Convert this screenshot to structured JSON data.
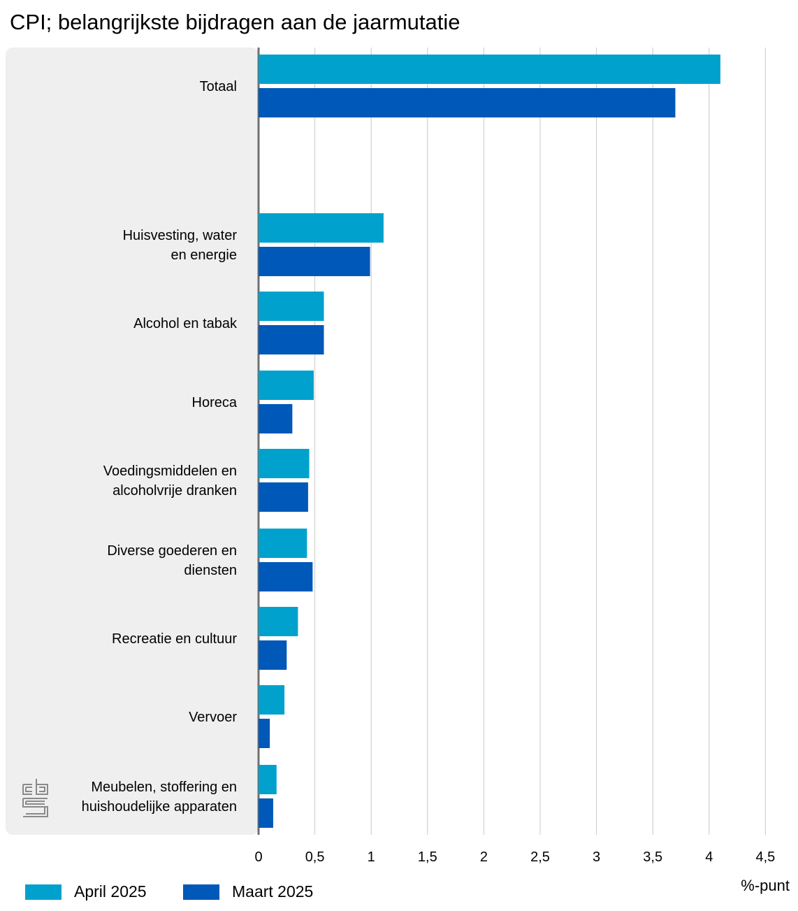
{
  "chart_data": {
    "type": "bar",
    "orientation": "horizontal",
    "title": "CPI; belangrijkste bijdragen aan de jaarmutatie",
    "unit_label": "%-punt",
    "xlim": [
      0,
      4.5
    ],
    "xticks": [
      0,
      0.5,
      1,
      1.5,
      2,
      2.5,
      3,
      3.5,
      4,
      4.5
    ],
    "xtick_labels": [
      "0",
      "0,5",
      "1",
      "1,5",
      "2",
      "2,5",
      "3",
      "3,5",
      "4",
      "4,5"
    ],
    "grid": "vertical",
    "legend_position": "bottom-left",
    "categories": [
      [
        "Totaal"
      ],
      [
        "Huisvesting, water",
        "en energie"
      ],
      [
        "Alcohol en tabak"
      ],
      [
        "Horeca"
      ],
      [
        "Voedingsmiddelen en",
        "alcoholvrije dranken"
      ],
      [
        "Diverse goederen en",
        "diensten"
      ],
      [
        "Recreatie en cultuur"
      ],
      [
        "Vervoer"
      ],
      [
        "Meubelen, stoffering en",
        "huishoudelijke apparaten"
      ]
    ],
    "series": [
      {
        "name": "April 2025",
        "color": "#00a1cd",
        "values": [
          4.1,
          1.11,
          0.58,
          0.49,
          0.45,
          0.43,
          0.35,
          0.23,
          0.16
        ]
      },
      {
        "name": "Maart 2025",
        "color": "#0058b8",
        "values": [
          3.7,
          0.99,
          0.58,
          0.3,
          0.44,
          0.48,
          0.25,
          0.1,
          0.13
        ]
      }
    ]
  },
  "logo_text": "cbs"
}
